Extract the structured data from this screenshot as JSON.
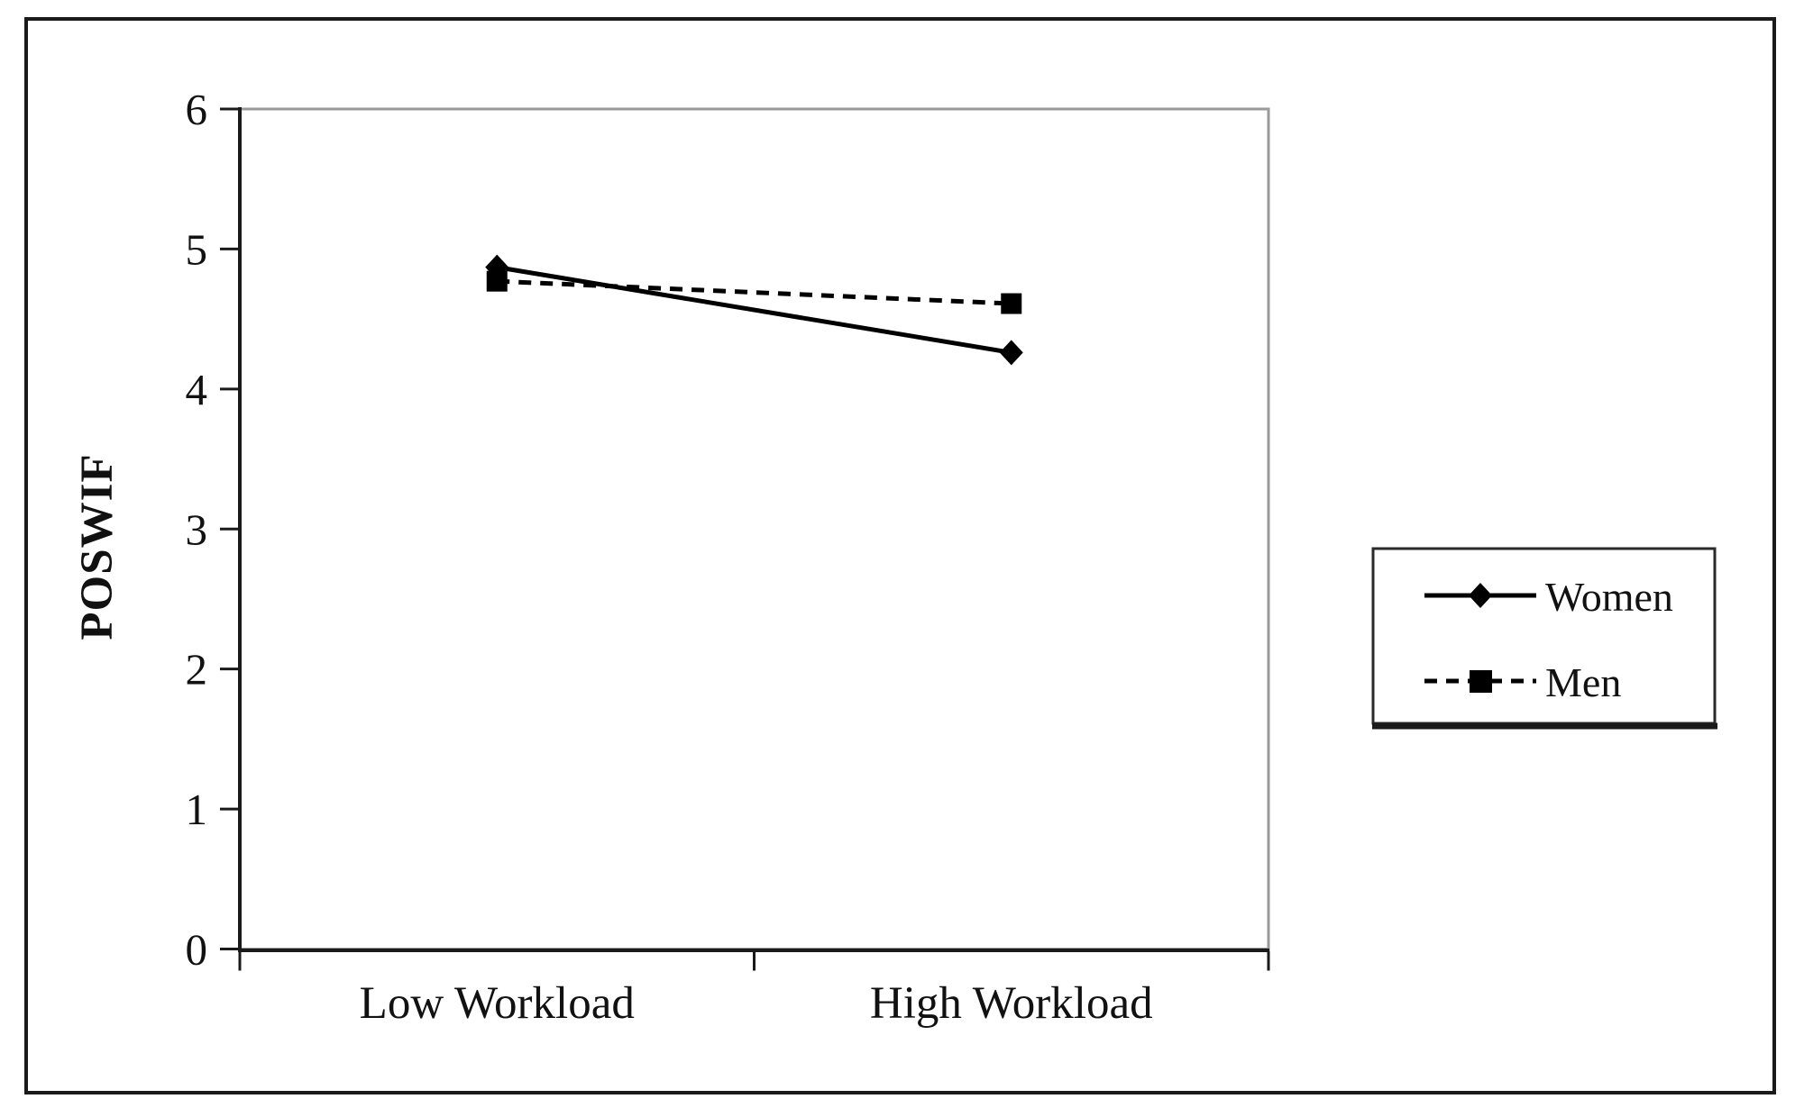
{
  "figure": {
    "background": "#ffffff",
    "outer_border_color": "#1a1a1a",
    "plot_border_color": "#9a9a9a",
    "axis_color": "#1a1a1a",
    "series_color": "#000000"
  },
  "chart_data": {
    "type": "line",
    "title": "",
    "xlabel": "",
    "ylabel": "POSWIF",
    "categories": [
      "Low Workload",
      "High Workload"
    ],
    "series": [
      {
        "name": "Women",
        "values": [
          4.87,
          4.26
        ],
        "line_style": "solid",
        "marker": "diamond",
        "color": "#000000"
      },
      {
        "name": "Men",
        "values": [
          4.77,
          4.61
        ],
        "line_style": "dashed",
        "marker": "square",
        "color": "#000000"
      }
    ],
    "ylim": [
      0,
      6
    ],
    "yticks": [
      0,
      1,
      2,
      3,
      4,
      5,
      6
    ],
    "grid": false,
    "legend_position": "right"
  }
}
